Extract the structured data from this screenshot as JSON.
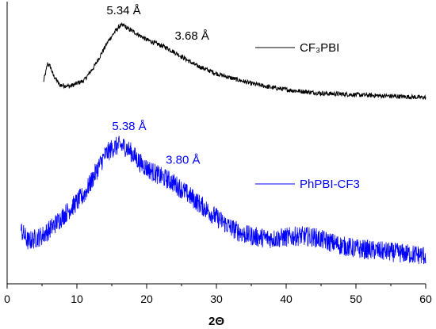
{
  "chart_data": {
    "type": "line",
    "xlabel": "2Θ",
    "ylabel": "",
    "xlim": [
      0,
      60
    ],
    "ylim": [
      0,
      1
    ],
    "xticks": [
      0,
      10,
      20,
      30,
      40,
      50,
      60
    ],
    "y_tick_labels": false,
    "grid": false,
    "legend_placement": "right (one entry beside each curve)",
    "series": [
      {
        "name": "CF₃PBI",
        "color": "#000000",
        "x": [
          5.2,
          5.5,
          5.8,
          6.2,
          6.6,
          7.5,
          9,
          11,
          12.5,
          13.5,
          14.5,
          15.5,
          16.2,
          16.8,
          17.2,
          18,
          19,
          20,
          21,
          22,
          23,
          24,
          25,
          26,
          27,
          28,
          30,
          32,
          35,
          38,
          41,
          45,
          50,
          55,
          60
        ],
        "values": [
          0.715,
          0.745,
          0.78,
          0.77,
          0.74,
          0.705,
          0.7,
          0.72,
          0.77,
          0.815,
          0.86,
          0.895,
          0.915,
          0.915,
          0.905,
          0.895,
          0.88,
          0.865,
          0.855,
          0.845,
          0.835,
          0.82,
          0.805,
          0.79,
          0.775,
          0.765,
          0.745,
          0.73,
          0.71,
          0.695,
          0.685,
          0.675,
          0.67,
          0.665,
          0.66
        ]
      },
      {
        "name": "PhPBI-CF3",
        "color": "#0000ff",
        "x": [
          2,
          3,
          4,
          5,
          6,
          7,
          8,
          9,
          10,
          11,
          12,
          13,
          14,
          15,
          16,
          17,
          18,
          19,
          20,
          21,
          22,
          23,
          24,
          25,
          26,
          27,
          28,
          29,
          30,
          32,
          34,
          36,
          38,
          40,
          42,
          44,
          46,
          48,
          50,
          52,
          54,
          56,
          58,
          60
        ],
        "values": [
          0.19,
          0.15,
          0.16,
          0.17,
          0.19,
          0.215,
          0.24,
          0.265,
          0.29,
          0.315,
          0.36,
          0.41,
          0.455,
          0.48,
          0.49,
          0.485,
          0.46,
          0.43,
          0.41,
          0.395,
          0.38,
          0.37,
          0.355,
          0.335,
          0.315,
          0.295,
          0.275,
          0.255,
          0.235,
          0.2,
          0.175,
          0.165,
          0.16,
          0.165,
          0.17,
          0.165,
          0.15,
          0.135,
          0.125,
          0.12,
          0.115,
          0.11,
          0.105,
          0.1
        ],
        "noise": 0.035
      }
    ],
    "annotations": [
      {
        "text": "5.34 Å",
        "x": 16.7,
        "y": 0.955,
        "color": "#000000"
      },
      {
        "text": "3.68 Å",
        "x": 26.5,
        "y": 0.865,
        "color": "#000000"
      },
      {
        "text": "5.38  Å",
        "x": 17.5,
        "y": 0.545,
        "color": "#0000ff"
      },
      {
        "text": "3.80  Å",
        "x": 25.2,
        "y": 0.425,
        "color": "#0000ff"
      }
    ]
  }
}
